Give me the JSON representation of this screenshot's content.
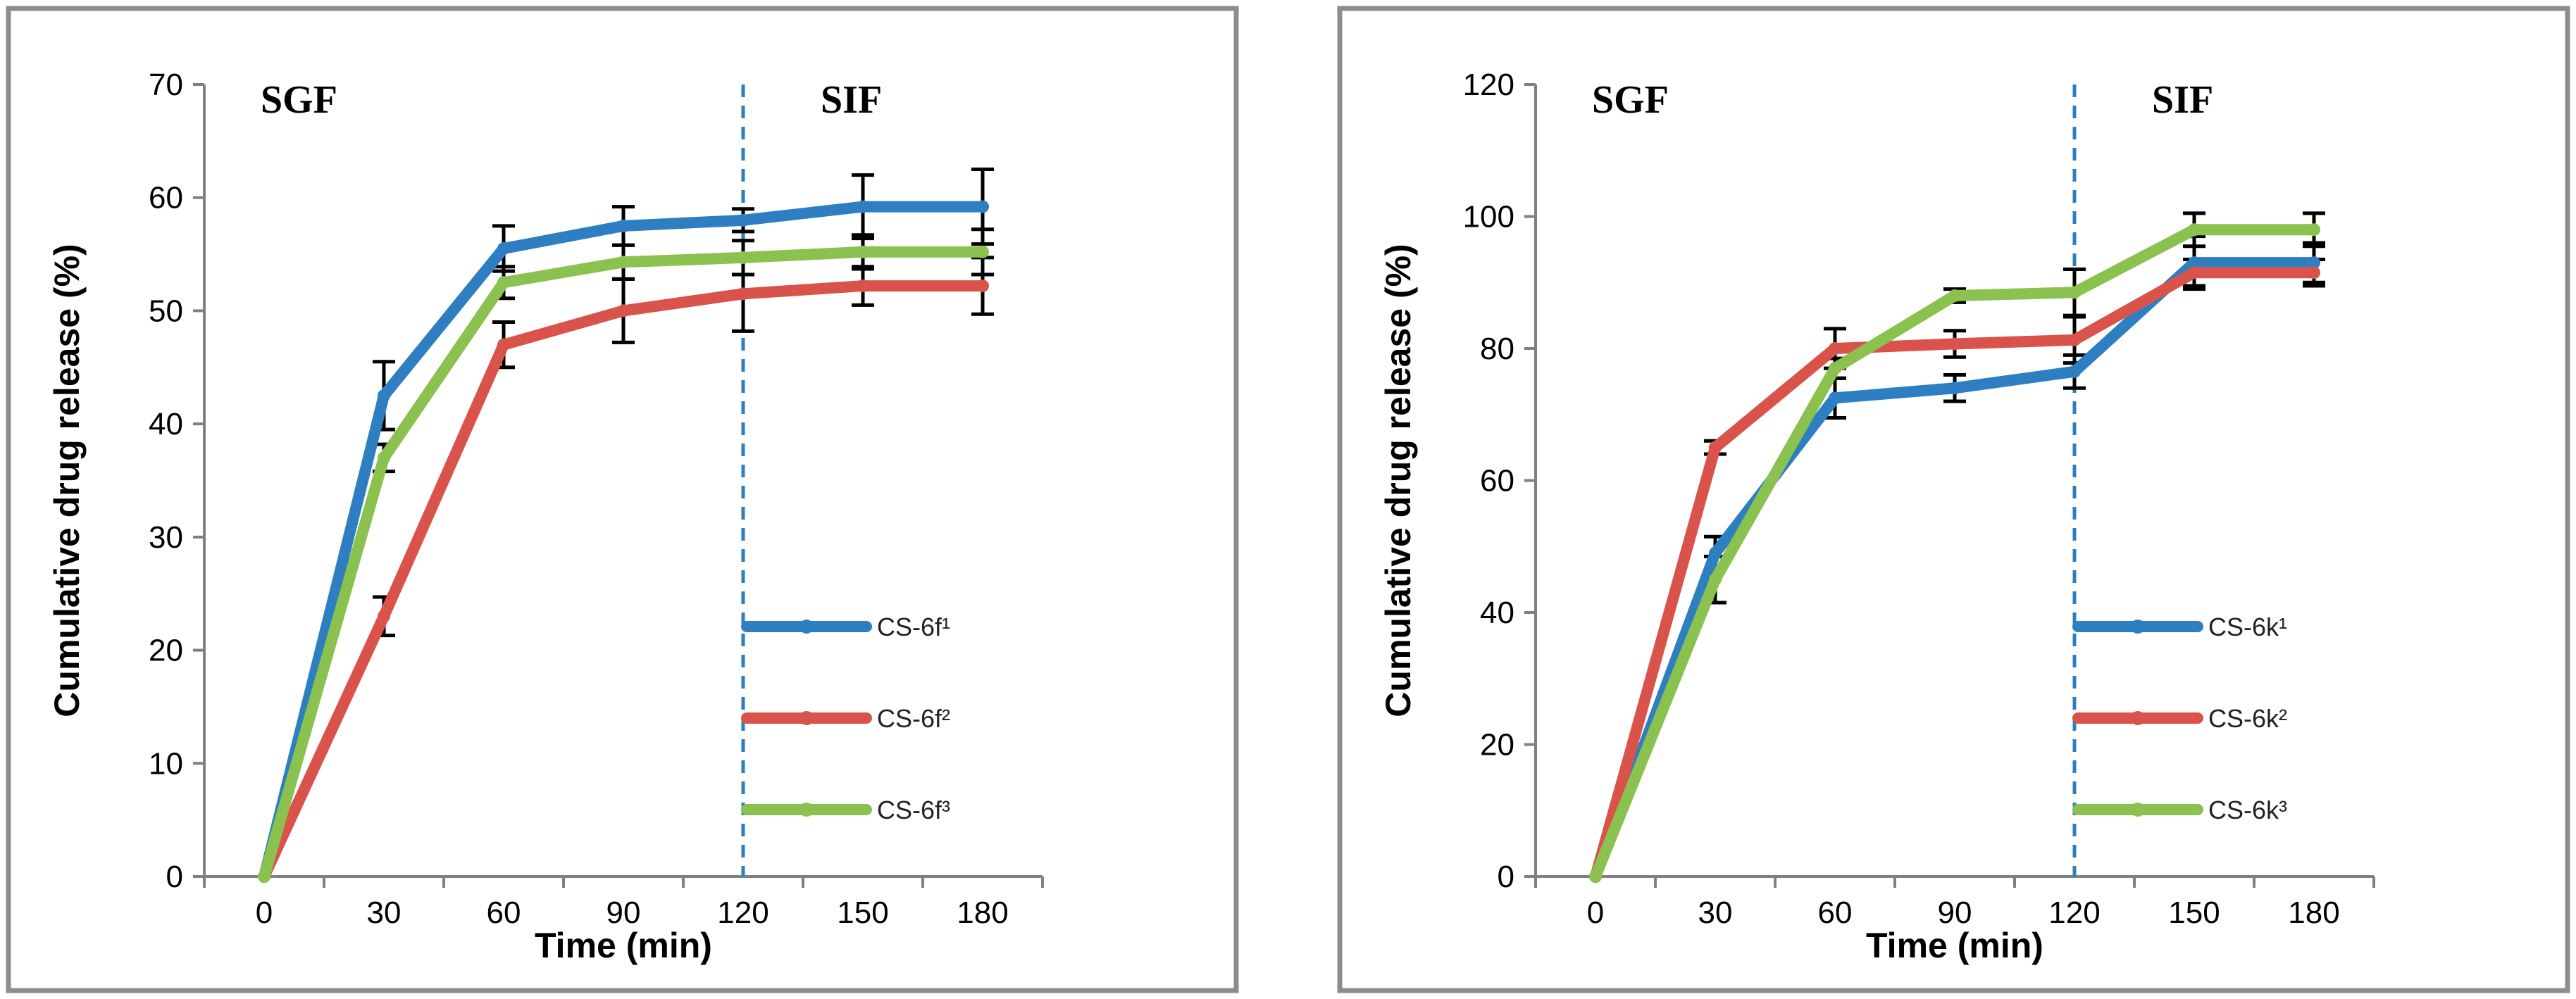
{
  "chart_data": [
    {
      "type": "line",
      "title": "",
      "xlabel": "Time (min)",
      "ylabel": "Cumulative drug release (%)",
      "x": [
        0,
        30,
        60,
        90,
        120,
        150,
        180
      ],
      "xlim": [
        -15,
        195
      ],
      "ylim": [
        0,
        70
      ],
      "yticks": [
        0,
        10,
        20,
        30,
        40,
        50,
        60,
        70
      ],
      "grid": false,
      "legend": "right",
      "divider_x": 120,
      "regions": [
        "SGF",
        "SIF"
      ],
      "series": [
        {
          "name": "CS-6f¹",
          "color": "#2e7fc1",
          "values": [
            0,
            42.5,
            55.5,
            57.5,
            58,
            59.2,
            59.2
          ],
          "errors": [
            0,
            3,
            2,
            1.7,
            1,
            2.8,
            3.3
          ]
        },
        {
          "name": "CS-6f²",
          "color": "#d9534a",
          "values": [
            0,
            23,
            47,
            50,
            51.5,
            52.2,
            52.2
          ],
          "errors": [
            0,
            1.7,
            2,
            2.8,
            3.3,
            1.7,
            2.5
          ]
        },
        {
          "name": "CS-6f³",
          "color": "#8bc14f",
          "values": [
            0,
            37,
            52.5,
            54.3,
            54.7,
            55.2,
            55.2
          ],
          "errors": [
            0,
            1.2,
            1.4,
            1.5,
            1.5,
            1.5,
            2
          ]
        }
      ]
    },
    {
      "type": "line",
      "title": "",
      "xlabel": "Time (min)",
      "ylabel": "Cumulative drug release (%)",
      "x": [
        0,
        30,
        60,
        90,
        120,
        150,
        180
      ],
      "xlim": [
        -15,
        195
      ],
      "ylim": [
        0,
        120
      ],
      "yticks": [
        0,
        20,
        40,
        60,
        80,
        100,
        120
      ],
      "grid": false,
      "legend": "right",
      "divider_x": 120,
      "regions": [
        "SGF",
        "SIF"
      ],
      "series": [
        {
          "name": "CS-6k¹",
          "color": "#2e7fc1",
          "values": [
            0,
            49,
            72.5,
            74,
            76.5,
            93,
            93
          ],
          "errors": [
            0,
            2.5,
            3,
            2,
            2.5,
            4,
            3
          ]
        },
        {
          "name": "CS-6k²",
          "color": "#d9534a",
          "values": [
            0,
            65,
            80,
            80.7,
            81.3,
            91.5,
            91.5
          ],
          "errors": [
            0,
            1,
            3,
            2,
            3.5,
            2,
            2
          ]
        },
        {
          "name": "CS-6k³",
          "color": "#8bc14f",
          "values": [
            0,
            45,
            77,
            88,
            88.5,
            98,
            98
          ],
          "errors": [
            0,
            3.5,
            1.5,
            1,
            3.5,
            2.5,
            2.5
          ]
        }
      ]
    }
  ]
}
